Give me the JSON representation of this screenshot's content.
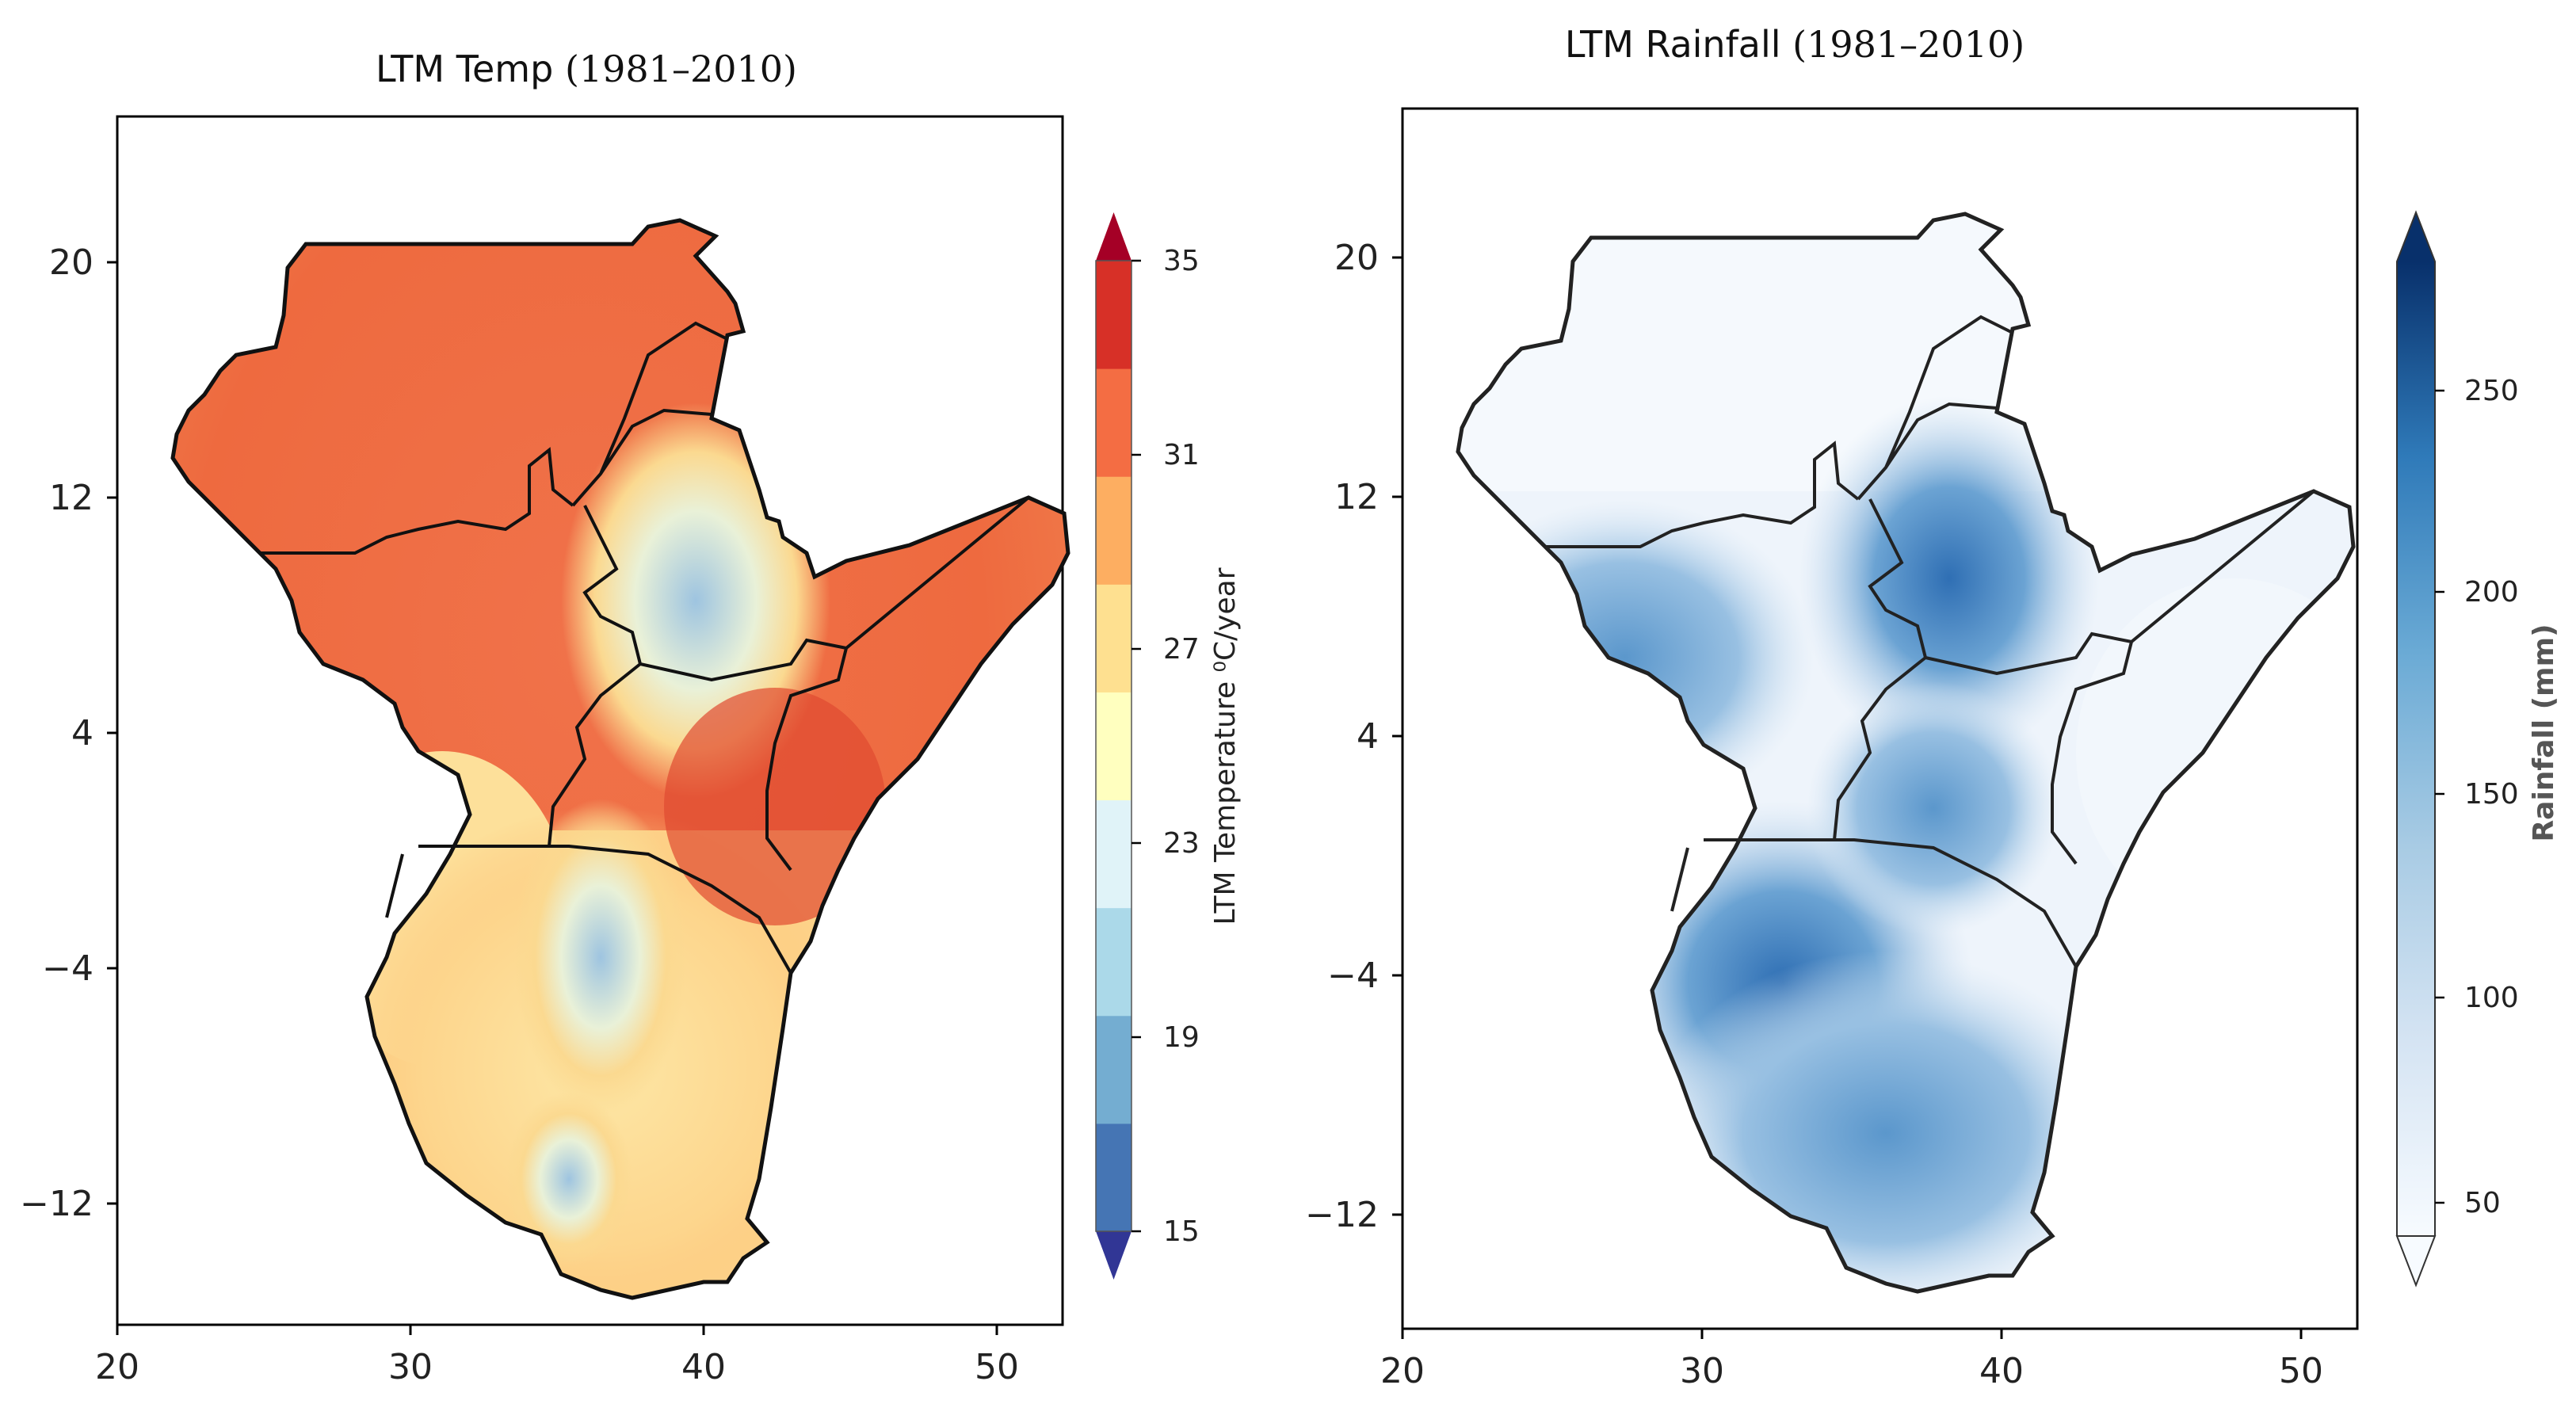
{
  "panels": [
    {
      "id": "temp",
      "title_main": "LTM Temp ",
      "title_year": "(1981–2010)",
      "x_ticks": [
        "20",
        "30",
        "40",
        "50"
      ],
      "y_ticks": [
        "20",
        "12",
        "4",
        "−4",
        "−12"
      ],
      "colorbar": {
        "label": "LTM Temperature ⁰C/year",
        "ticks": [
          "35",
          "31",
          "27",
          "23",
          "19",
          "15"
        ],
        "colors": [
          "#313695",
          "#4575b4",
          "#74add1",
          "#abd9e9",
          "#e0f3f8",
          "#ffffbf",
          "#fee090",
          "#fdae61",
          "#f46d43",
          "#d73027",
          "#a50026"
        ]
      }
    },
    {
      "id": "rain",
      "title_main": "LTM Rainfall ",
      "title_year": "(1981–2010)",
      "x_ticks": [
        "20",
        "30",
        "40",
        "50"
      ],
      "y_ticks": [
        "20",
        "12",
        "4",
        "−4",
        "−12"
      ],
      "colorbar": {
        "label": "Rainfall (mm)",
        "ticks": [
          "250",
          "200",
          "150",
          "100",
          "50"
        ],
        "colors": [
          "#f7fbff",
          "#deebf7",
          "#c6dbef",
          "#9ecae1",
          "#6baed6",
          "#4292c6",
          "#2171b5",
          "#08519c",
          "#08306b"
        ]
      }
    }
  ]
}
